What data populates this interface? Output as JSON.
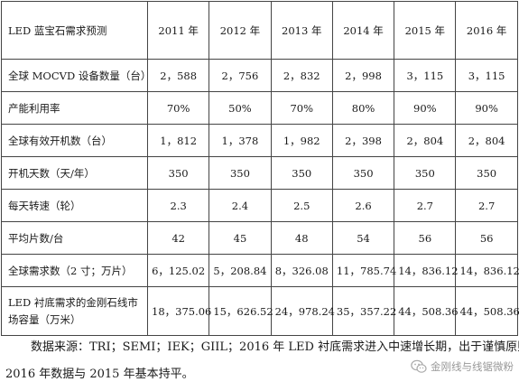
{
  "table": {
    "header": {
      "label": "LED 蓝宝石需求预测",
      "years": [
        "2011 年",
        "2012 年",
        "2013 年",
        "2014 年",
        "2015 年",
        "2016 年"
      ]
    },
    "rows": [
      {
        "label": "全球 MOCVD 设备数量（台）",
        "values": [
          "2，588",
          "2，756",
          "2，832",
          "2，998",
          "3，115",
          "3，115"
        ]
      },
      {
        "label": "产能利用率",
        "values": [
          "70%",
          "50%",
          "70%",
          "80%",
          "90%",
          "90%"
        ]
      },
      {
        "label": "全球有效开机数（台）",
        "values": [
          "1，812",
          "1，378",
          "1，982",
          "2，398",
          "2，804",
          "2，804"
        ]
      },
      {
        "label": "开机天数（天/年）",
        "values": [
          "350",
          "350",
          "350",
          "350",
          "350",
          "350"
        ]
      },
      {
        "label": "每天转速（轮）",
        "values": [
          "2.3",
          "2.4",
          "2.5",
          "2.6",
          "2.7",
          "2.7"
        ]
      },
      {
        "label": "平均片数/台",
        "values": [
          "42",
          "45",
          "48",
          "54",
          "56",
          "56"
        ]
      },
      {
        "label": "全球需求数（2 寸；万片）",
        "values": [
          "6，125.02",
          "5，208.84",
          "8，326.08",
          "11，785.74",
          "14，836.12",
          "14，836.12"
        ]
      },
      {
        "label": "LED 衬底需求的金刚石线市场容量（万米）",
        "values": [
          "18，375.06",
          "15，626.52",
          "24，978.24",
          "35，357.22",
          "44，508.36",
          "44，508.36"
        ]
      }
    ]
  },
  "notes": {
    "line1": "数据来源：TRI；SEMI；IEK；GIIL；2016 年 LED 衬底需求进入中速增长期，出于谨慎原则，",
    "line2": "2016 年数据与 2015 年基本持平。"
  },
  "watermark": {
    "text": "金刚线与线锯微粉",
    "icon": "wechat-icon",
    "color": "#999999"
  }
}
